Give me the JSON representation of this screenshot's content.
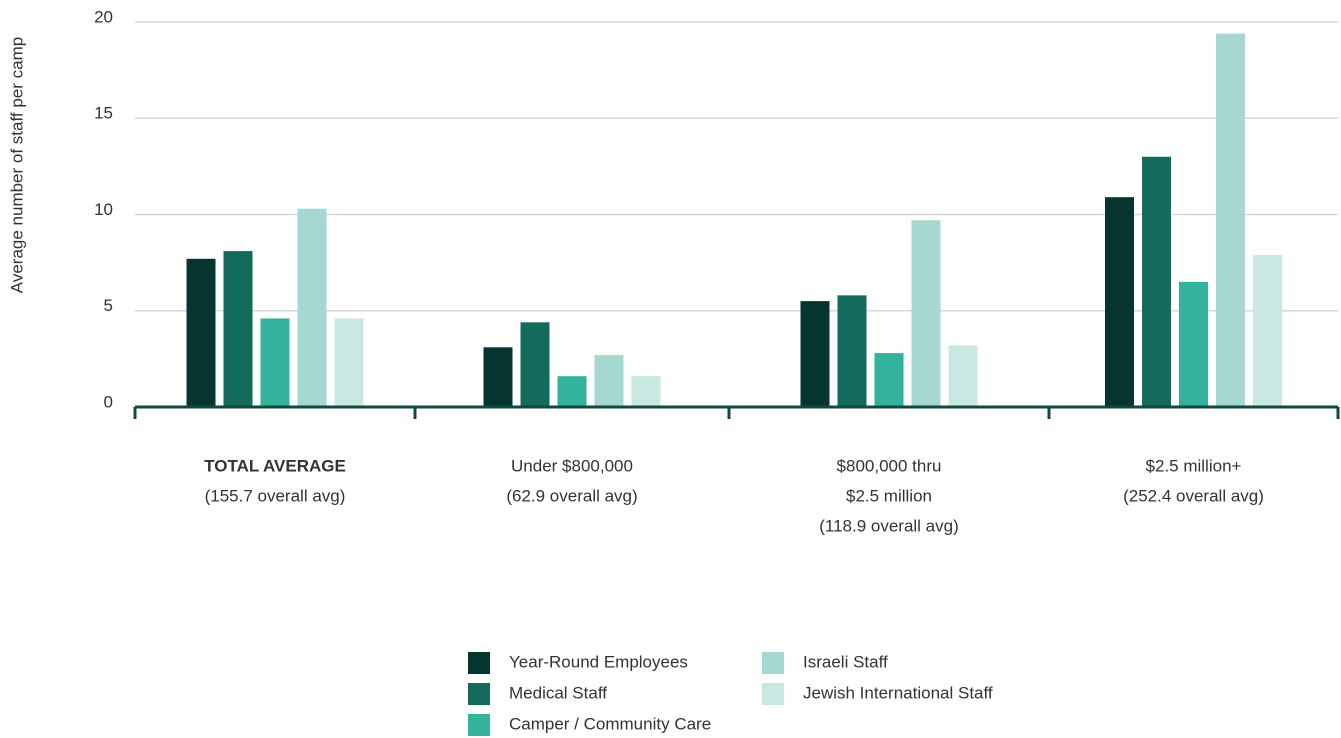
{
  "chart_data": {
    "type": "bar",
    "y_label": "Average number of staff per camp",
    "categories": [
      [
        "TOTAL AVERAGE",
        "(155.7 overall avg)"
      ],
      [
        "Under $800,000",
        "(62.9 overall avg)"
      ],
      [
        "$800,000 thru",
        "$2.5 million",
        "(118.9 overall avg)"
      ],
      [
        "$2.5 million+",
        "(252.4 overall avg)"
      ]
    ],
    "series": [
      {
        "name": "Year-Round Employees",
        "color": "#06352f",
        "values": [
          7.7,
          3.1,
          5.5,
          10.9
        ]
      },
      {
        "name": "Medical Staff",
        "color": "#136b5c",
        "values": [
          8.1,
          4.4,
          5.8,
          13.0
        ]
      },
      {
        "name": "Camper / Community Care",
        "color": "#33b39b",
        "values": [
          4.6,
          1.6,
          2.8,
          6.5
        ]
      },
      {
        "name": "Israeli Staff",
        "color": "#a5d8d0",
        "values": [
          10.3,
          2.7,
          9.7,
          19.4
        ]
      },
      {
        "name": "Jewish International Staff",
        "color": "#c9e8e2",
        "values": [
          4.6,
          1.6,
          3.2,
          7.9
        ]
      }
    ],
    "ylim": [
      0,
      20
    ],
    "yticks": [
      0,
      5,
      10,
      15,
      20
    ],
    "grid": true,
    "legend": "bottom"
  }
}
